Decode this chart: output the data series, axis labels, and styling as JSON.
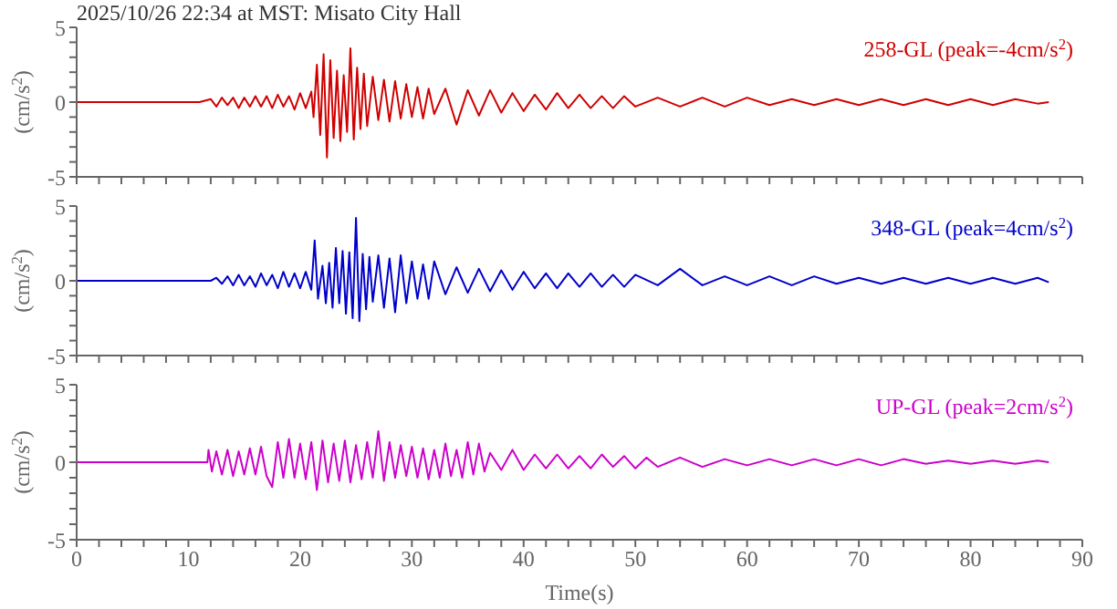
{
  "chart_data": [
    {
      "type": "line",
      "title": "2025/10/26 22:34 at MST: Misato City Hall",
      "ylabel": "(cm/s$^{2}$)",
      "annotations": [
        "258-GL (peak=-4cm/s$^{2}$)"
      ],
      "tick_labels": "y",
      "marker": "none",
      "xlim": [
        0,
        90
      ],
      "ylim": [
        -5,
        5
      ],
      "xticks": [
        0,
        {
          "value": 2,
          "label": null
        },
        {
          "value": 4,
          "label": null
        },
        {
          "value": 6,
          "label": null
        },
        {
          "value": 8,
          "label": null
        },
        10,
        {
          "value": 12,
          "label": null
        },
        {
          "value": 14,
          "label": null
        },
        {
          "value": 16,
          "label": null
        },
        {
          "value": 18,
          "label": null
        },
        20,
        {
          "value": 22,
          "label": null
        },
        {
          "value": 24,
          "label": null
        },
        {
          "value": 26,
          "label": null
        },
        {
          "value": 28,
          "label": null
        },
        30,
        {
          "value": 32,
          "label": null
        },
        {
          "value": 34,
          "label": null
        },
        {
          "value": 36,
          "label": null
        },
        {
          "value": 38,
          "label": null
        },
        40,
        {
          "value": 42,
          "label": null
        },
        {
          "value": 44,
          "label": null
        },
        {
          "value": 46,
          "label": null
        },
        {
          "value": 48,
          "label": null
        },
        50,
        {
          "value": 52,
          "label": null
        },
        {
          "value": 54,
          "label": null
        },
        {
          "value": 56,
          "label": null
        },
        {
          "value": 58,
          "label": null
        },
        60,
        {
          "value": 62,
          "label": null
        },
        {
          "value": 64,
          "label": null
        },
        {
          "value": 66,
          "label": null
        },
        {
          "value": 68,
          "label": null
        },
        70,
        {
          "value": 72,
          "label": null
        },
        {
          "value": 74,
          "label": null
        },
        {
          "value": 76,
          "label": null
        },
        {
          "value": 78,
          "label": null
        },
        80,
        {
          "value": 82,
          "label": null
        },
        {
          "value": 84,
          "label": null
        },
        {
          "value": 86,
          "label": null
        },
        {
          "value": 88,
          "label": null
        },
        90
      ],
      "yticks": [
        -5,
        {
          "value": -4,
          "label": null
        },
        {
          "value": -3,
          "label": null
        },
        {
          "value": -2,
          "label": null
        },
        {
          "value": -1,
          "label": null
        },
        0,
        {
          "value": 1,
          "label": null
        },
        {
          "value": 2,
          "label": null
        },
        {
          "value": 3,
          "label": null
        },
        {
          "value": 4,
          "label": null
        },
        5
      ],
      "series": [
        {
          "color": "#d00000",
          "x": [
            0,
            11,
            12,
            12.5,
            13,
            13.5,
            14,
            14.5,
            15,
            15.5,
            16,
            16.5,
            17,
            17.5,
            18,
            18.5,
            19,
            19.5,
            20,
            20.5,
            21,
            21.2,
            21.5,
            21.8,
            22.1,
            22.4,
            22.7,
            23,
            23.3,
            23.6,
            23.9,
            24.2,
            24.5,
            24.8,
            25.1,
            25.4,
            25.7,
            26,
            26.5,
            27,
            27.5,
            28,
            28.5,
            29,
            29.5,
            30,
            30.5,
            31,
            31.5,
            32,
            33,
            34,
            35,
            36,
            37,
            38,
            39,
            40,
            41,
            42,
            43,
            44,
            45,
            46,
            47,
            48,
            49,
            50,
            52,
            54,
            56,
            58,
            60,
            62,
            64,
            66,
            68,
            70,
            72,
            74,
            76,
            78,
            80,
            82,
            84,
            86,
            87
          ],
          "values": [
            0,
            0,
            0.2,
            -0.3,
            0.3,
            -0.2,
            0.3,
            -0.4,
            0.3,
            -0.3,
            0.4,
            -0.3,
            0.4,
            -0.4,
            0.5,
            -0.3,
            0.4,
            -0.5,
            0.6,
            -0.4,
            0.7,
            -1,
            2.5,
            -2.2,
            3.2,
            -3.7,
            2.8,
            -2.4,
            2.1,
            -2.6,
            1.8,
            -2,
            3.6,
            -2.5,
            2.3,
            -1.8,
            1.9,
            -1.6,
            1.7,
            -1.2,
            1.5,
            -1.3,
            1.4,
            -1.1,
            1.2,
            -1,
            1,
            -1.1,
            0.9,
            -0.8,
            0.9,
            -1.5,
            0.8,
            -0.9,
            0.8,
            -0.7,
            0.6,
            -0.6,
            0.5,
            -0.5,
            0.6,
            -0.4,
            0.5,
            -0.4,
            0.4,
            -0.4,
            0.4,
            -0.3,
            0.3,
            -0.3,
            0.3,
            -0.3,
            0.3,
            -0.2,
            0.2,
            -0.2,
            0.2,
            -0.2,
            0.2,
            -0.2,
            0.2,
            -0.2,
            0.2,
            -0.2,
            0.2,
            -0.1,
            0
          ]
        }
      ]
    },
    {
      "type": "line",
      "ylabel": "(cm/s$^{2}$)",
      "annotations": [
        "348-GL (peak=4cm/s$^{2}$)"
      ],
      "tick_labels": "y",
      "marker": "none",
      "xlim": [
        0,
        90
      ],
      "ylim": [
        -5,
        5
      ],
      "xticks": [
        0,
        {
          "value": 2,
          "label": null
        },
        {
          "value": 4,
          "label": null
        },
        {
          "value": 6,
          "label": null
        },
        {
          "value": 8,
          "label": null
        },
        10,
        {
          "value": 12,
          "label": null
        },
        {
          "value": 14,
          "label": null
        },
        {
          "value": 16,
          "label": null
        },
        {
          "value": 18,
          "label": null
        },
        20,
        {
          "value": 22,
          "label": null
        },
        {
          "value": 24,
          "label": null
        },
        {
          "value": 26,
          "label": null
        },
        {
          "value": 28,
          "label": null
        },
        30,
        {
          "value": 32,
          "label": null
        },
        {
          "value": 34,
          "label": null
        },
        {
          "value": 36,
          "label": null
        },
        {
          "value": 38,
          "label": null
        },
        40,
        {
          "value": 42,
          "label": null
        },
        {
          "value": 44,
          "label": null
        },
        {
          "value": 46,
          "label": null
        },
        {
          "value": 48,
          "label": null
        },
        50,
        {
          "value": 52,
          "label": null
        },
        {
          "value": 54,
          "label": null
        },
        {
          "value": 56,
          "label": null
        },
        {
          "value": 58,
          "label": null
        },
        60,
        {
          "value": 62,
          "label": null
        },
        {
          "value": 64,
          "label": null
        },
        {
          "value": 66,
          "label": null
        },
        {
          "value": 68,
          "label": null
        },
        70,
        {
          "value": 72,
          "label": null
        },
        {
          "value": 74,
          "label": null
        },
        {
          "value": 76,
          "label": null
        },
        {
          "value": 78,
          "label": null
        },
        80,
        {
          "value": 82,
          "label": null
        },
        {
          "value": 84,
          "label": null
        },
        {
          "value": 86,
          "label": null
        },
        {
          "value": 88,
          "label": null
        },
        90
      ],
      "yticks": [
        -5,
        {
          "value": -4,
          "label": null
        },
        {
          "value": -3,
          "label": null
        },
        {
          "value": -2,
          "label": null
        },
        {
          "value": -1,
          "label": null
        },
        0,
        {
          "value": 1,
          "label": null
        },
        {
          "value": 2,
          "label": null
        },
        {
          "value": 3,
          "label": null
        },
        {
          "value": 4,
          "label": null
        },
        5
      ],
      "series": [
        {
          "color": "#0000cc",
          "x": [
            0,
            12,
            12.5,
            13,
            13.5,
            14,
            14.5,
            15,
            15.5,
            16,
            16.5,
            17,
            17.5,
            18,
            18.5,
            19,
            19.5,
            20,
            20.5,
            21,
            21.3,
            21.6,
            22,
            22.3,
            22.6,
            22.9,
            23.2,
            23.5,
            23.8,
            24.1,
            24.4,
            24.7,
            25,
            25.3,
            25.6,
            25.9,
            26.2,
            26.5,
            27,
            27.5,
            28,
            28.5,
            29,
            29.5,
            30,
            30.5,
            31,
            31.5,
            32,
            33,
            34,
            35,
            36,
            37,
            38,
            39,
            40,
            41,
            42,
            43,
            44,
            45,
            46,
            47,
            48,
            49,
            50,
            52,
            54,
            56,
            58,
            60,
            62,
            64,
            66,
            68,
            70,
            72,
            74,
            76,
            78,
            80,
            82,
            84,
            86,
            87
          ],
          "values": [
            0,
            0,
            0.2,
            -0.2,
            0.3,
            -0.3,
            0.4,
            -0.3,
            0.3,
            -0.4,
            0.5,
            -0.3,
            0.4,
            -0.5,
            0.6,
            -0.4,
            0.5,
            -0.5,
            0.6,
            -0.6,
            2.7,
            -1.2,
            1,
            -1.5,
            1.2,
            -1.8,
            2.2,
            -1.5,
            2,
            -2.2,
            1.9,
            -2.5,
            4.2,
            -2.7,
            1.8,
            -1.9,
            1.6,
            -1.4,
            1.7,
            -1.8,
            1.5,
            -2.1,
            1.7,
            -1.5,
            1.3,
            -1.2,
            1.1,
            -1.2,
            1.3,
            -0.9,
            0.9,
            -0.8,
            0.8,
            -0.7,
            0.7,
            -0.6,
            0.6,
            -0.5,
            0.5,
            -0.5,
            0.5,
            -0.4,
            0.5,
            -0.4,
            0.4,
            -0.4,
            0.4,
            -0.3,
            0.8,
            -0.3,
            0.3,
            -0.3,
            0.3,
            -0.3,
            0.3,
            -0.2,
            0.2,
            -0.2,
            0.2,
            -0.2,
            0.2,
            -0.2,
            0.2,
            -0.2,
            0.2,
            -0.1
          ]
        }
      ]
    },
    {
      "type": "line",
      "ylabel": "(cm/s$^{2}$)",
      "xlabel": "Time(s)",
      "annotations": [
        "UP-GL (peak=2cm/s$^{2}$)"
      ],
      "marker": "none",
      "xlim": [
        0,
        90
      ],
      "ylim": [
        -5,
        5
      ],
      "xticks": [
        0,
        {
          "value": 2,
          "label": null
        },
        {
          "value": 4,
          "label": null
        },
        {
          "value": 6,
          "label": null
        },
        {
          "value": 8,
          "label": null
        },
        10,
        {
          "value": 12,
          "label": null
        },
        {
          "value": 14,
          "label": null
        },
        {
          "value": 16,
          "label": null
        },
        {
          "value": 18,
          "label": null
        },
        20,
        {
          "value": 22,
          "label": null
        },
        {
          "value": 24,
          "label": null
        },
        {
          "value": 26,
          "label": null
        },
        {
          "value": 28,
          "label": null
        },
        30,
        {
          "value": 32,
          "label": null
        },
        {
          "value": 34,
          "label": null
        },
        {
          "value": 36,
          "label": null
        },
        {
          "value": 38,
          "label": null
        },
        40,
        {
          "value": 42,
          "label": null
        },
        {
          "value": 44,
          "label": null
        },
        {
          "value": 46,
          "label": null
        },
        {
          "value": 48,
          "label": null
        },
        50,
        {
          "value": 52,
          "label": null
        },
        {
          "value": 54,
          "label": null
        },
        {
          "value": 56,
          "label": null
        },
        {
          "value": 58,
          "label": null
        },
        60,
        {
          "value": 62,
          "label": null
        },
        {
          "value": 64,
          "label": null
        },
        {
          "value": 66,
          "label": null
        },
        {
          "value": 68,
          "label": null
        },
        70,
        {
          "value": 72,
          "label": null
        },
        {
          "value": 74,
          "label": null
        },
        {
          "value": 76,
          "label": null
        },
        {
          "value": 78,
          "label": null
        },
        80,
        {
          "value": 82,
          "label": null
        },
        {
          "value": 84,
          "label": null
        },
        {
          "value": 86,
          "label": null
        },
        {
          "value": 88,
          "label": null
        },
        90
      ],
      "yticks": [
        -5,
        {
          "value": -4,
          "label": null
        },
        {
          "value": -3,
          "label": null
        },
        {
          "value": -2,
          "label": null
        },
        {
          "value": -1,
          "label": null
        },
        0,
        {
          "value": 1,
          "label": null
        },
        {
          "value": 2,
          "label": null
        },
        {
          "value": 3,
          "label": null
        },
        {
          "value": 4,
          "label": null
        },
        5
      ],
      "series": [
        {
          "color": "#cc00cc",
          "x": [
            0,
            11.7,
            11.8,
            12.1,
            12.5,
            13,
            13.5,
            14,
            14.5,
            15,
            15.5,
            16,
            16.5,
            17,
            17.5,
            18,
            18.5,
            19,
            19.5,
            20,
            20.5,
            21,
            21.5,
            22,
            22.5,
            23,
            23.5,
            24,
            24.5,
            25,
            25.5,
            26,
            26.5,
            27,
            27.5,
            28,
            28.5,
            29,
            29.5,
            30,
            30.5,
            31,
            31.5,
            32,
            32.5,
            33,
            33.5,
            34,
            34.5,
            35,
            35.5,
            36,
            36.5,
            37,
            38,
            39,
            40,
            41,
            42,
            43,
            44,
            45,
            46,
            47,
            48,
            49,
            50,
            51,
            52,
            54,
            56,
            58,
            60,
            62,
            64,
            66,
            68,
            70,
            72,
            74,
            76,
            78,
            80,
            82,
            84,
            86,
            87
          ],
          "values": [
            0,
            0,
            0.8,
            -0.6,
            0.7,
            -0.8,
            0.8,
            -0.9,
            0.7,
            -0.8,
            0.9,
            -0.8,
            1,
            -0.9,
            -1.6,
            1.3,
            -1,
            1.5,
            -1,
            1.2,
            -1.1,
            1.3,
            -1.8,
            1.4,
            -1.3,
            1.2,
            -1.2,
            1.4,
            -1.3,
            1.1,
            -1.1,
            1.3,
            -1,
            2,
            -1.2,
            1.3,
            -1,
            1.1,
            -0.9,
            1,
            -1,
            0.9,
            -1.1,
            0.8,
            -1,
            1.2,
            -0.9,
            0.8,
            -1,
            1.3,
            -0.8,
            1.2,
            -0.6,
            0.6,
            -0.5,
            0.8,
            -0.5,
            0.5,
            -0.4,
            0.5,
            -0.4,
            0.4,
            -0.4,
            0.5,
            -0.3,
            0.4,
            -0.4,
            0.3,
            -0.3,
            0.3,
            -0.3,
            0.2,
            -0.2,
            0.2,
            -0.2,
            0.2,
            -0.2,
            0.2,
            -0.2,
            0.2,
            -0.1,
            0.1,
            -0.1,
            0.1,
            -0.1,
            0.1,
            0
          ]
        }
      ]
    }
  ]
}
